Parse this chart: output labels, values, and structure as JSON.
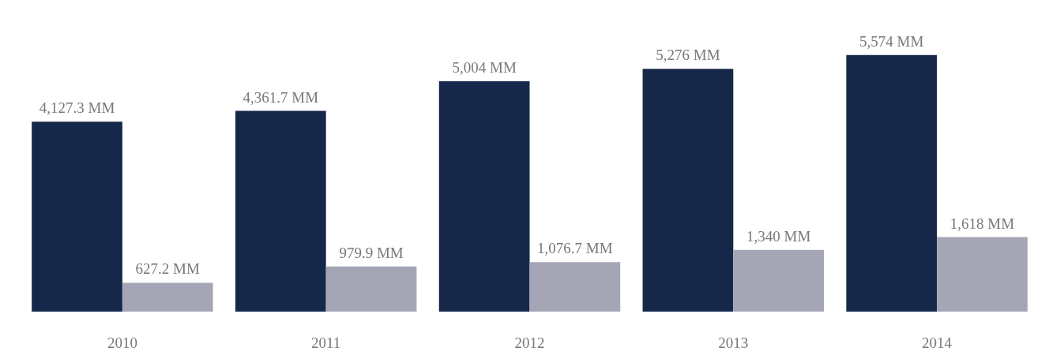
{
  "chart_data": {
    "type": "bar",
    "categories": [
      "2010",
      "2011",
      "2012",
      "2013",
      "2014"
    ],
    "series": [
      {
        "color": "#16284a",
        "values": [
          4127.3,
          4361.7,
          5004,
          5276,
          5574
        ],
        "value_labels": [
          "4,127.3 MM",
          "4,361.7 MM",
          "5,004 MM",
          "5,276 MM",
          "5,574 MM"
        ]
      },
      {
        "color": "#a5a6b5",
        "values": [
          627.2,
          979.9,
          1076.7,
          1340,
          1618
        ],
        "value_labels": [
          "627.2 MM",
          "979.9 MM",
          "1,076.7 MM",
          "1,340 MM",
          "1,618 MM"
        ]
      }
    ]
  }
}
